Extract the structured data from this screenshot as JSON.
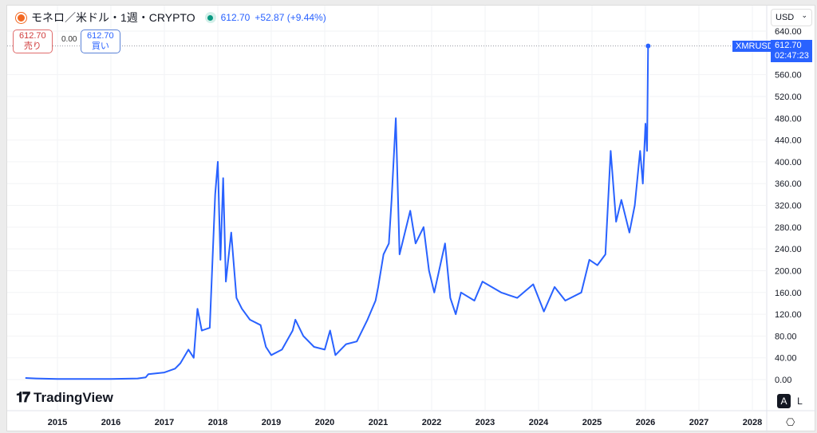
{
  "header": {
    "title": "モネロ／米ドル・1週・CRYPTO",
    "price": "612.70",
    "change": "+52.87 (+9.44%)"
  },
  "quote": {
    "sell_price": "612.70",
    "sell_label": "売り",
    "spread": "0.00",
    "buy_price": "612.70",
    "buy_label": "買い"
  },
  "currency": "USD",
  "last_tag": {
    "symbol": "XMRUSD",
    "price": "612.70",
    "countdown": "02:47:23"
  },
  "brand": "TradingView",
  "scale_buttons": {
    "auto": "A",
    "log": "L"
  },
  "colors": {
    "line": "#2962ff"
  },
  "chart_data": {
    "type": "line",
    "title": "モネロ／米ドル・1週・CRYPTO",
    "ylabel": "USD",
    "ylim": [
      0,
      640
    ],
    "y_ticks": [
      "0.00",
      "40.00",
      "80.00",
      "120.00",
      "160.00",
      "200.00",
      "240.00",
      "280.00",
      "320.00",
      "360.00",
      "400.00",
      "440.00",
      "480.00",
      "520.00",
      "560.00",
      "640.00"
    ],
    "x_ticks": [
      "2015",
      "2016",
      "2017",
      "2018",
      "2019",
      "2020",
      "2021",
      "2022",
      "2023",
      "2024",
      "2025",
      "2026",
      "2027",
      "2028"
    ],
    "series": [
      {
        "name": "XMRUSD",
        "points": [
          [
            2014.4,
            3
          ],
          [
            2014.6,
            2
          ],
          [
            2015.0,
            1
          ],
          [
            2015.5,
            1
          ],
          [
            2016.0,
            1
          ],
          [
            2016.5,
            2
          ],
          [
            2016.65,
            4
          ],
          [
            2016.7,
            10
          ],
          [
            2017.0,
            13
          ],
          [
            2017.2,
            20
          ],
          [
            2017.3,
            30
          ],
          [
            2017.45,
            55
          ],
          [
            2017.55,
            40
          ],
          [
            2017.62,
            130
          ],
          [
            2017.7,
            90
          ],
          [
            2017.85,
            95
          ],
          [
            2017.95,
            340
          ],
          [
            2018.0,
            400
          ],
          [
            2018.05,
            220
          ],
          [
            2018.1,
            370
          ],
          [
            2018.15,
            180
          ],
          [
            2018.25,
            270
          ],
          [
            2018.35,
            150
          ],
          [
            2018.45,
            130
          ],
          [
            2018.6,
            110
          ],
          [
            2018.8,
            100
          ],
          [
            2018.9,
            60
          ],
          [
            2019.0,
            45
          ],
          [
            2019.2,
            55
          ],
          [
            2019.4,
            90
          ],
          [
            2019.45,
            110
          ],
          [
            2019.6,
            80
          ],
          [
            2019.8,
            60
          ],
          [
            2020.0,
            55
          ],
          [
            2020.1,
            90
          ],
          [
            2020.2,
            45
          ],
          [
            2020.4,
            65
          ],
          [
            2020.6,
            70
          ],
          [
            2020.8,
            110
          ],
          [
            2020.95,
            145
          ],
          [
            2021.0,
            170
          ],
          [
            2021.1,
            230
          ],
          [
            2021.2,
            250
          ],
          [
            2021.25,
            330
          ],
          [
            2021.33,
            480
          ],
          [
            2021.4,
            230
          ],
          [
            2021.5,
            270
          ],
          [
            2021.6,
            310
          ],
          [
            2021.7,
            250
          ],
          [
            2021.85,
            280
          ],
          [
            2021.95,
            200
          ],
          [
            2022.05,
            160
          ],
          [
            2022.25,
            250
          ],
          [
            2022.35,
            150
          ],
          [
            2022.45,
            120
          ],
          [
            2022.55,
            160
          ],
          [
            2022.8,
            145
          ],
          [
            2022.95,
            180
          ],
          [
            2023.3,
            160
          ],
          [
            2023.6,
            150
          ],
          [
            2023.9,
            175
          ],
          [
            2024.1,
            125
          ],
          [
            2024.3,
            170
          ],
          [
            2024.5,
            145
          ],
          [
            2024.8,
            160
          ],
          [
            2024.95,
            220
          ],
          [
            2025.1,
            210
          ],
          [
            2025.25,
            230
          ],
          [
            2025.35,
            420
          ],
          [
            2025.45,
            290
          ],
          [
            2025.55,
            330
          ],
          [
            2025.7,
            270
          ],
          [
            2025.8,
            320
          ],
          [
            2025.9,
            420
          ],
          [
            2025.95,
            360
          ],
          [
            2026.0,
            470
          ],
          [
            2026.03,
            420
          ],
          [
            2026.05,
            612.7
          ]
        ]
      }
    ]
  }
}
